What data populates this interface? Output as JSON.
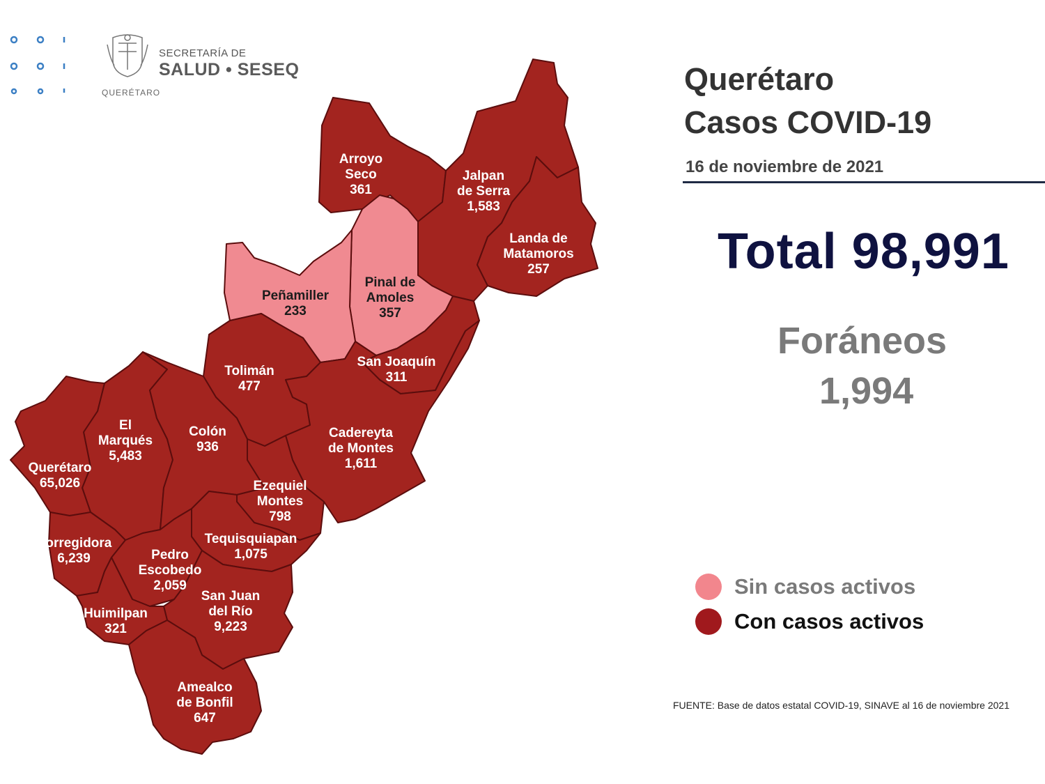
{
  "logo": {
    "line1": "SECRETARÍA DE",
    "line2": "SALUD • SESEQ",
    "state": "QUERÉTARO",
    "crest_icon": "state-coat-of-arms-icon",
    "dots_icon": "dotted-pattern-icon"
  },
  "header": {
    "title_line1": "Querétaro",
    "title_line2": "Casos COVID-19",
    "date": "16 de noviembre de 2021"
  },
  "summary": {
    "total": "Total 98,991",
    "foraneos_label": "Foráneos",
    "foraneos_value": "1,994"
  },
  "legend": {
    "no_active": {
      "label": "Sin casos activos",
      "color": "#f2868d"
    },
    "active": {
      "label": "Con casos activos",
      "color": "#a0191d"
    }
  },
  "colors": {
    "active_fill": "#a3241f",
    "no_active_fill": "#f08a91",
    "border": "#5b0d0d"
  },
  "source": "FUENTE: Base de datos estatal COVID-19, SINAVE al 16 de noviembre 2021",
  "municipalities": {
    "arroyo_seco": {
      "name1": "Arroyo",
      "name2": "Seco",
      "cases": "361",
      "active": true
    },
    "jalpan": {
      "name1": "Jalpan",
      "name2": "de Serra",
      "cases": "1,583",
      "active": true
    },
    "landa": {
      "name1": "Landa de",
      "name2": "Matamoros",
      "cases": "257",
      "active": true
    },
    "pinal": {
      "name1": "Pinal de",
      "name2": "Amoles",
      "cases": "357",
      "active": false
    },
    "penamiller": {
      "name1": "Peñamiller",
      "cases": "233",
      "active": false
    },
    "san_joaquin": {
      "name1": "San Joaquín",
      "cases": "311",
      "active": true
    },
    "toliman": {
      "name1": "Tolimán",
      "cases": "477",
      "active": true
    },
    "cadereyta": {
      "name1": "Cadereyta",
      "name2": "de Montes",
      "cases": "1,611",
      "active": true
    },
    "el_marques": {
      "name1": "El",
      "name2": "Marqués",
      "cases": "5,483",
      "active": true
    },
    "colon": {
      "name1": "Colón",
      "cases": "936",
      "active": true
    },
    "queretaro": {
      "name1": "Querétaro",
      "cases": "65,026",
      "active": true
    },
    "ezequiel": {
      "name1": "Ezequiel",
      "name2": "Montes",
      "cases": "798",
      "active": true
    },
    "corregidora": {
      "name1": "Corregidora",
      "cases": "6,239",
      "active": true
    },
    "tequisquiapan": {
      "name1": "Tequisquiapan",
      "cases": "1,075",
      "active": true
    },
    "pedro_escobedo": {
      "name1": "Pedro",
      "name2": "Escobedo",
      "cases": "2,059",
      "active": true
    },
    "san_juan": {
      "name1": "San Juan",
      "name2": "del Río",
      "cases": "9,223",
      "active": true
    },
    "huimilpan": {
      "name1": "Huimilpan",
      "cases": "321",
      "active": true
    },
    "amealco": {
      "name1": "Amealco",
      "name2": "de Bonfil",
      "cases": "647",
      "active": true
    }
  }
}
